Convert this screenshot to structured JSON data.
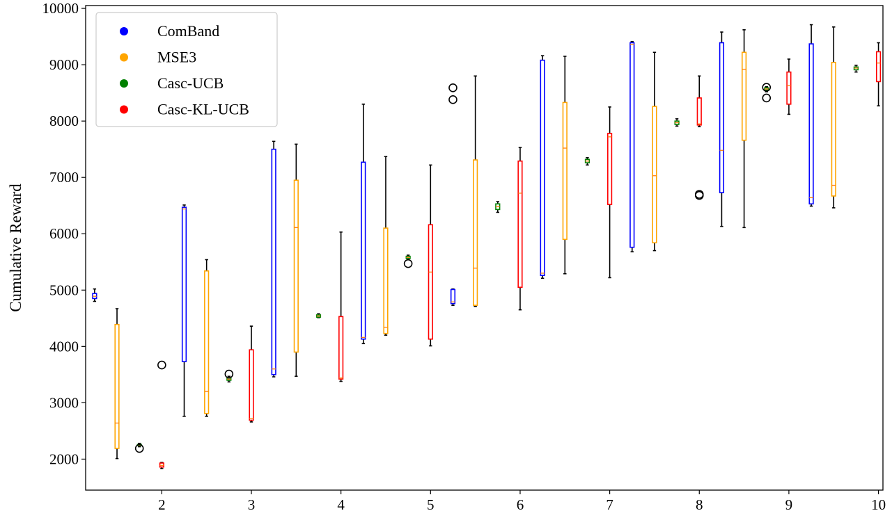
{
  "chart_data": {
    "type": "box",
    "title": "",
    "xlabel": "",
    "ylabel": "Cumulative Reward",
    "xlim": [
      1.15,
      10.05
    ],
    "ylim": [
      1450,
      10050
    ],
    "xticks": [
      2,
      3,
      4,
      5,
      6,
      7,
      8,
      9,
      10
    ],
    "yticks": [
      2000,
      3000,
      4000,
      5000,
      6000,
      7000,
      8000,
      9000,
      10000
    ],
    "grid": false,
    "legend_position": "top-left",
    "median_color": "#ff7f0e",
    "legend": [
      {
        "name": "ComBand",
        "color": "#0000ff"
      },
      {
        "name": "MSE3",
        "color": "#ffa500"
      },
      {
        "name": "Casc-UCB",
        "color": "#008000"
      },
      {
        "name": "Casc-KL-UCB",
        "color": "#ff0000"
      }
    ],
    "series": [
      {
        "name": "ComBand",
        "color": "#0000ff",
        "boxes": [
          {
            "x": 1.25,
            "whislo": 4800,
            "q1": 4850,
            "med": 4890,
            "q3": 4940,
            "whishi": 5020,
            "fliers": []
          },
          {
            "x": 2.25,
            "whislo": 2760,
            "q1": 3730,
            "med": 6440,
            "q3": 6470,
            "whishi": 6510,
            "fliers": []
          },
          {
            "x": 3.25,
            "whislo": 3460,
            "q1": 3500,
            "med": 3600,
            "q3": 7500,
            "whishi": 7640,
            "fliers": []
          },
          {
            "x": 4.25,
            "whislo": 4050,
            "q1": 4130,
            "med": 4160,
            "q3": 7270,
            "whishi": 8300,
            "fliers": []
          },
          {
            "x": 5.25,
            "whislo": 4730,
            "q1": 4760,
            "med": 4790,
            "q3": 5010,
            "whishi": 5020,
            "fliers": [
              8380,
              8590
            ]
          },
          {
            "x": 6.25,
            "whislo": 5210,
            "q1": 5260,
            "med": 5300,
            "q3": 9080,
            "whishi": 9160,
            "fliers": []
          },
          {
            "x": 7.25,
            "whislo": 5680,
            "q1": 5760,
            "med": 9360,
            "q3": 9390,
            "whishi": 9410,
            "fliers": []
          },
          {
            "x": 8.25,
            "whislo": 6130,
            "q1": 6730,
            "med": 7480,
            "q3": 9390,
            "whishi": 9580,
            "fliers": []
          },
          {
            "x": 9.25,
            "whislo": 6490,
            "q1": 6530,
            "med": 6640,
            "q3": 9370,
            "whishi": 9710,
            "fliers": []
          }
        ]
      },
      {
        "name": "MSE3",
        "color": "#ffa500",
        "boxes": [
          {
            "x": 1.5,
            "whislo": 2010,
            "q1": 2190,
            "med": 2640,
            "q3": 4390,
            "whishi": 4670,
            "fliers": []
          },
          {
            "x": 2.5,
            "whislo": 2760,
            "q1": 2810,
            "med": 3200,
            "q3": 5340,
            "whishi": 5540,
            "fliers": []
          },
          {
            "x": 3.5,
            "whislo": 3470,
            "q1": 3900,
            "med": 6110,
            "q3": 6950,
            "whishi": 7590,
            "fliers": []
          },
          {
            "x": 4.5,
            "whislo": 4200,
            "q1": 4230,
            "med": 4340,
            "q3": 6100,
            "whishi": 7370,
            "fliers": []
          },
          {
            "x": 5.5,
            "whislo": 4710,
            "q1": 4730,
            "med": 5390,
            "q3": 7310,
            "whishi": 8800,
            "fliers": []
          },
          {
            "x": 6.5,
            "whislo": 5290,
            "q1": 5900,
            "med": 7520,
            "q3": 8330,
            "whishi": 9150,
            "fliers": []
          },
          {
            "x": 7.5,
            "whislo": 5700,
            "q1": 5840,
            "med": 7030,
            "q3": 8260,
            "whishi": 9220,
            "fliers": []
          },
          {
            "x": 8.5,
            "whislo": 6110,
            "q1": 7660,
            "med": 8920,
            "q3": 9220,
            "whishi": 9620,
            "fliers": []
          },
          {
            "x": 9.5,
            "whislo": 6460,
            "q1": 6670,
            "med": 6860,
            "q3": 9040,
            "whishi": 9670,
            "fliers": []
          }
        ]
      },
      {
        "name": "Casc-UCB",
        "color": "#008000",
        "boxes": [
          {
            "x": 1.75,
            "whislo": 2220,
            "q1": 2240,
            "med": 2250,
            "q3": 2260,
            "whishi": 2280,
            "fliers": [
              2190
            ]
          },
          {
            "x": 2.75,
            "whislo": 3370,
            "q1": 3400,
            "med": 3420,
            "q3": 3440,
            "whishi": 3470,
            "fliers": [
              3510
            ]
          },
          {
            "x": 3.75,
            "whislo": 4510,
            "q1": 4520,
            "med": 4540,
            "q3": 4560,
            "whishi": 4580,
            "fliers": []
          },
          {
            "x": 4.75,
            "whislo": 5540,
            "q1": 5560,
            "med": 5580,
            "q3": 5600,
            "whishi": 5620,
            "fliers": [
              5470
            ]
          },
          {
            "x": 5.75,
            "whislo": 6380,
            "q1": 6430,
            "med": 6480,
            "q3": 6530,
            "whishi": 6570,
            "fliers": []
          },
          {
            "x": 6.75,
            "whislo": 7220,
            "q1": 7260,
            "med": 7290,
            "q3": 7320,
            "whishi": 7350,
            "fliers": []
          },
          {
            "x": 7.75,
            "whislo": 7910,
            "q1": 7940,
            "med": 7970,
            "q3": 8000,
            "whishi": 8040,
            "fliers": []
          },
          {
            "x": 8.75,
            "whislo": 8520,
            "q1": 8550,
            "med": 8570,
            "q3": 8590,
            "whishi": 8610,
            "fliers": [
              8410,
              8600
            ]
          },
          {
            "x": 9.75,
            "whislo": 8870,
            "q1": 8910,
            "med": 8940,
            "q3": 8960,
            "whishi": 8990,
            "fliers": []
          }
        ]
      },
      {
        "name": "Casc-KL-UCB",
        "color": "#ff0000",
        "boxes": [
          {
            "x": 2.0,
            "whislo": 1830,
            "q1": 1860,
            "med": 1890,
            "q3": 1930,
            "whishi": 1940,
            "fliers": [
              3670
            ]
          },
          {
            "x": 3.0,
            "whislo": 2660,
            "q1": 2690,
            "med": 2720,
            "q3": 3940,
            "whishi": 4360,
            "fliers": []
          },
          {
            "x": 4.0,
            "whislo": 3380,
            "q1": 3420,
            "med": 3440,
            "q3": 4530,
            "whishi": 6030,
            "fliers": []
          },
          {
            "x": 5.0,
            "whislo": 4010,
            "q1": 4130,
            "med": 5320,
            "q3": 6160,
            "whishi": 7220,
            "fliers": []
          },
          {
            "x": 6.0,
            "whislo": 4650,
            "q1": 5050,
            "med": 6720,
            "q3": 7290,
            "whishi": 7530,
            "fliers": []
          },
          {
            "x": 7.0,
            "whislo": 5220,
            "q1": 6520,
            "med": 7720,
            "q3": 7780,
            "whishi": 8250,
            "fliers": []
          },
          {
            "x": 8.0,
            "whislo": 7900,
            "q1": 7930,
            "med": 7950,
            "q3": 8410,
            "whishi": 8800,
            "fliers": [
              6680,
              6700
            ]
          },
          {
            "x": 9.0,
            "whislo": 8120,
            "q1": 8300,
            "med": 8630,
            "q3": 8870,
            "whishi": 9100,
            "fliers": []
          },
          {
            "x": 10.0,
            "whislo": 8270,
            "q1": 8700,
            "med": 9030,
            "q3": 9230,
            "whishi": 9390,
            "fliers": []
          }
        ]
      }
    ]
  }
}
